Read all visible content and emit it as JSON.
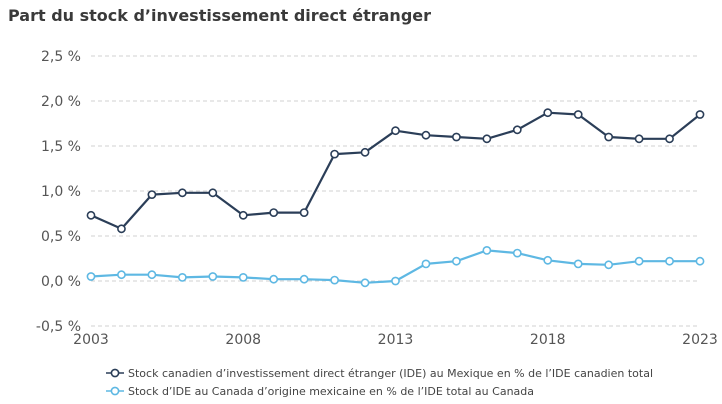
{
  "chart_data": {
    "type": "line",
    "title": "Part du stock d’investissement direct étranger",
    "xlabel": "",
    "ylabel": "",
    "x": [
      2003,
      2004,
      2005,
      2006,
      2007,
      2008,
      2009,
      2010,
      2011,
      2012,
      2013,
      2014,
      2015,
      2016,
      2017,
      2018,
      2019,
      2020,
      2021,
      2022,
      2023
    ],
    "xlim": [
      2003,
      2023
    ],
    "ylim": [
      -0.5,
      2.5
    ],
    "y_ticks": [
      "-0,5 %",
      "0,0 %",
      "0,5 %",
      "1,0 %",
      "1,5 %",
      "2,0 %",
      "2,5 %"
    ],
    "x_ticks": [
      "2003",
      "2008",
      "2013",
      "2018",
      "2023"
    ],
    "grid": "horizontal dashed",
    "legend_position": "bottom",
    "series": [
      {
        "name": "Stock canadien d’investissement direct étranger (IDE) au Mexique en % de l’IDE canadien total",
        "color": "#2b3e58",
        "values": [
          0.73,
          0.58,
          0.96,
          0.98,
          0.98,
          0.73,
          0.76,
          0.76,
          1.41,
          1.43,
          1.67,
          1.62,
          1.6,
          1.58,
          1.68,
          1.87,
          1.85,
          1.6,
          1.58,
          1.58,
          1.85
        ]
      },
      {
        "name": "Stock d’IDE au Canada d’origine mexicaine en % de l’IDE total au Canada",
        "color": "#5eb8e3",
        "values": [
          0.05,
          0.07,
          0.07,
          0.04,
          0.05,
          0.04,
          0.02,
          0.02,
          0.01,
          -0.02,
          0.0,
          0.19,
          0.22,
          0.34,
          0.31,
          0.23,
          0.19,
          0.18,
          0.22,
          0.22,
          0.22
        ]
      }
    ]
  }
}
